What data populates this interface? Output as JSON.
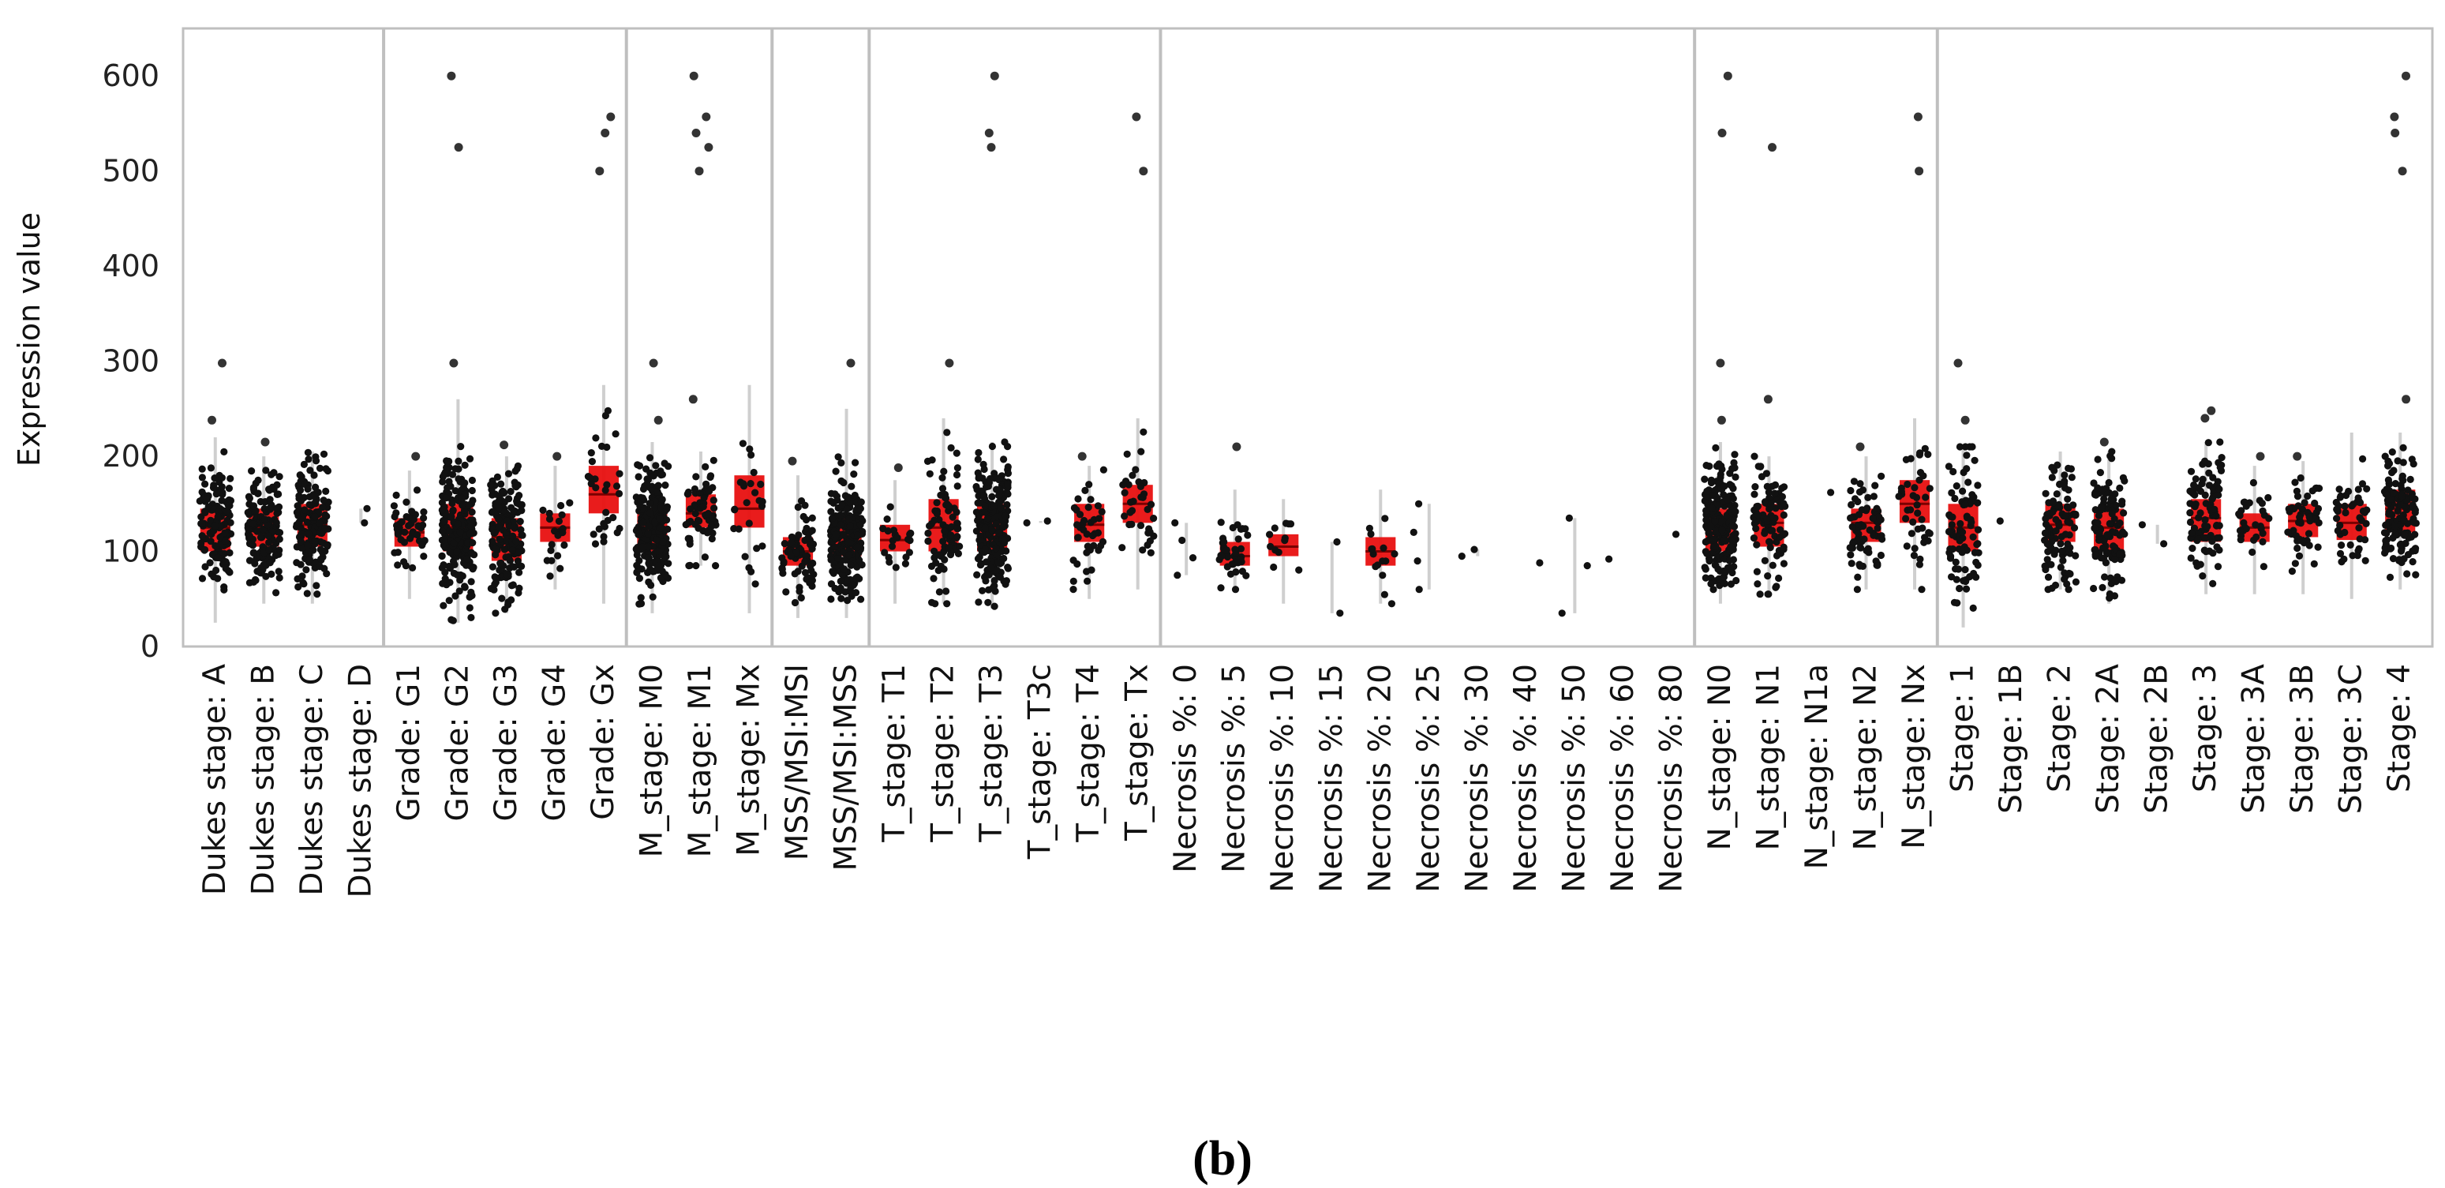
{
  "chart_data": {
    "type": "scatter",
    "subtype": "grouped jitter strip plot with box summaries",
    "ylabel": "Expression value",
    "ylim": [
      0,
      650
    ],
    "yticks": [
      0,
      100,
      200,
      300,
      400,
      500,
      600
    ],
    "grid": false,
    "point_color": "#111111",
    "box_color": "#e81010",
    "separator_color": "#bfbfbf",
    "panel_label": "(b)",
    "groups": [
      {
        "name": "Dukes stage",
        "categories": [
          {
            "label": "Dukes stage: A",
            "n": 130,
            "median": 125,
            "q1": 100,
            "q3": 145,
            "lo": 25,
            "hi": 220,
            "outliers": [
              238,
              298
            ]
          },
          {
            "label": "Dukes stage: B",
            "n": 150,
            "median": 125,
            "q1": 105,
            "q3": 145,
            "lo": 45,
            "hi": 200,
            "outliers": [
              215
            ]
          },
          {
            "label": "Dukes stage: C",
            "n": 150,
            "median": 128,
            "q1": 105,
            "q3": 150,
            "lo": 45,
            "hi": 205,
            "outliers": []
          },
          {
            "label": "Dukes stage: D",
            "n": 2,
            "median": 135,
            "q1": 130,
            "q3": 140,
            "lo": 130,
            "hi": 145,
            "outliers": []
          }
        ]
      },
      {
        "name": "Grade",
        "categories": [
          {
            "label": "Grade: G1",
            "n": 45,
            "median": 120,
            "q1": 105,
            "q3": 135,
            "lo": 50,
            "hi": 185,
            "outliers": [
              200
            ]
          },
          {
            "label": "Grade: G2",
            "n": 320,
            "median": 125,
            "q1": 100,
            "q3": 150,
            "lo": 25,
            "hi": 260,
            "outliers": [
              298,
              525,
              600
            ]
          },
          {
            "label": "Grade: G3",
            "n": 160,
            "median": 115,
            "q1": 90,
            "q3": 135,
            "lo": 35,
            "hi": 200,
            "outliers": [
              212
            ]
          },
          {
            "label": "Grade: G4",
            "n": 20,
            "median": 125,
            "q1": 110,
            "q3": 140,
            "lo": 60,
            "hi": 190,
            "outliers": [
              200
            ]
          },
          {
            "label": "Grade: Gx",
            "n": 30,
            "median": 160,
            "q1": 140,
            "q3": 190,
            "lo": 45,
            "hi": 275,
            "outliers": [
              500,
              540,
              557
            ]
          }
        ]
      },
      {
        "name": "M_stage",
        "categories": [
          {
            "label": "M_stage: M0",
            "n": 260,
            "median": 125,
            "q1": 100,
            "q3": 145,
            "lo": 35,
            "hi": 215,
            "outliers": [
              238,
              298
            ]
          },
          {
            "label": "M_stage: M1",
            "n": 60,
            "median": 140,
            "q1": 125,
            "q3": 160,
            "lo": 85,
            "hi": 205,
            "outliers": [
              260,
              500,
              525,
              540,
              557,
              600
            ]
          },
          {
            "label": "M_stage: Mx",
            "n": 25,
            "median": 145,
            "q1": 125,
            "q3": 180,
            "lo": 35,
            "hi": 275,
            "outliers": []
          }
        ]
      },
      {
        "name": "MSS/MSI",
        "categories": [
          {
            "label": "MSS/MSI:MSI",
            "n": 70,
            "median": 100,
            "q1": 85,
            "q3": 115,
            "lo": 30,
            "hi": 180,
            "outliers": [
              195
            ]
          },
          {
            "label": "MSS/MSI:MSS",
            "n": 260,
            "median": 115,
            "q1": 95,
            "q3": 135,
            "lo": 30,
            "hi": 250,
            "outliers": [
              298
            ]
          }
        ]
      },
      {
        "name": "T_stage",
        "categories": [
          {
            "label": "T_stage: T1",
            "n": 20,
            "median": 112,
            "q1": 100,
            "q3": 128,
            "lo": 45,
            "hi": 175,
            "outliers": [
              188
            ]
          },
          {
            "label": "T_stage: T2",
            "n": 80,
            "median": 125,
            "q1": 100,
            "q3": 155,
            "lo": 45,
            "hi": 240,
            "outliers": [
              298
            ]
          },
          {
            "label": "T_stage: T3",
            "n": 300,
            "median": 125,
            "q1": 100,
            "q3": 150,
            "lo": 40,
            "hi": 215,
            "outliers": [
              525,
              540,
              600
            ]
          },
          {
            "label": "T_stage: T3c",
            "n": 2,
            "median": 130,
            "q1": 130,
            "q3": 132,
            "lo": 130,
            "hi": 132,
            "outliers": []
          },
          {
            "label": "T_stage: T4",
            "n": 40,
            "median": 128,
            "q1": 110,
            "q3": 150,
            "lo": 50,
            "hi": 190,
            "outliers": [
              200
            ]
          },
          {
            "label": "T_stage: Tx",
            "n": 35,
            "median": 150,
            "q1": 130,
            "q3": 170,
            "lo": 60,
            "hi": 240,
            "outliers": [
              500,
              557
            ]
          }
        ]
      },
      {
        "name": "Necrosis %",
        "categories": [
          {
            "label": "Necrosis %: 0",
            "n": 4,
            "median": 95,
            "q1": 80,
            "q3": 110,
            "lo": 75,
            "hi": 130,
            "outliers": []
          },
          {
            "label": "Necrosis %: 5",
            "n": 40,
            "median": 95,
            "q1": 85,
            "q3": 110,
            "lo": 60,
            "hi": 165,
            "outliers": [
              210
            ]
          },
          {
            "label": "Necrosis %: 10",
            "n": 12,
            "median": 105,
            "q1": 95,
            "q3": 118,
            "lo": 45,
            "hi": 155,
            "outliers": []
          },
          {
            "label": "Necrosis %: 15",
            "n": 2,
            "median": 70,
            "q1": 35,
            "q3": 110,
            "lo": 35,
            "hi": 110,
            "outliers": []
          },
          {
            "label": "Necrosis %: 20",
            "n": 15,
            "median": 100,
            "q1": 85,
            "q3": 115,
            "lo": 45,
            "hi": 165,
            "outliers": []
          },
          {
            "label": "Necrosis %: 25",
            "n": 4,
            "median": 120,
            "q1": 105,
            "q3": 140,
            "lo": 60,
            "hi": 150,
            "outliers": []
          },
          {
            "label": "Necrosis %: 30",
            "n": 2,
            "median": 98,
            "q1": 95,
            "q3": 102,
            "lo": 95,
            "hi": 102,
            "outliers": []
          },
          {
            "label": "Necrosis %: 40",
            "n": 1,
            "median": 88,
            "q1": 88,
            "q3": 88,
            "lo": 88,
            "hi": 88,
            "outliers": []
          },
          {
            "label": "Necrosis %: 50",
            "n": 3,
            "median": 65,
            "q1": 40,
            "q3": 135,
            "lo": 35,
            "hi": 135,
            "outliers": []
          },
          {
            "label": "Necrosis %: 60",
            "n": 1,
            "median": 92,
            "q1": 92,
            "q3": 92,
            "lo": 92,
            "hi": 92,
            "outliers": []
          },
          {
            "label": "Necrosis %: 80",
            "n": 1,
            "median": 118,
            "q1": 118,
            "q3": 118,
            "lo": 118,
            "hi": 118,
            "outliers": []
          }
        ]
      },
      {
        "name": "N_stage",
        "categories": [
          {
            "label": "N_stage: N0",
            "n": 240,
            "median": 125,
            "q1": 100,
            "q3": 145,
            "lo": 45,
            "hi": 215,
            "outliers": [
              238,
              298,
              540,
              600
            ]
          },
          {
            "label": "N_stage: N1",
            "n": 90,
            "median": 130,
            "q1": 105,
            "q3": 150,
            "lo": 55,
            "hi": 200,
            "outliers": [
              260,
              525
            ]
          },
          {
            "label": "N_stage: N1a",
            "n": 1,
            "median": 162,
            "q1": 162,
            "q3": 162,
            "lo": 162,
            "hi": 162,
            "outliers": []
          },
          {
            "label": "N_stage: N2",
            "n": 70,
            "median": 130,
            "q1": 110,
            "q3": 145,
            "lo": 60,
            "hi": 200,
            "outliers": [
              210
            ]
          },
          {
            "label": "N_stage: Nx",
            "n": 40,
            "median": 150,
            "q1": 130,
            "q3": 175,
            "lo": 60,
            "hi": 240,
            "outliers": [
              500,
              557
            ]
          }
        ]
      },
      {
        "name": "Stage",
        "categories": [
          {
            "label": "Stage: 1",
            "n": 80,
            "median": 125,
            "q1": 100,
            "q3": 150,
            "lo": 20,
            "hi": 210,
            "outliers": [
              238,
              298
            ]
          },
          {
            "label": "Stage: 1B",
            "n": 1,
            "median": 132,
            "q1": 132,
            "q3": 132,
            "lo": 132,
            "hi": 132,
            "outliers": []
          },
          {
            "label": "Stage: 2",
            "n": 100,
            "median": 128,
            "q1": 110,
            "q3": 150,
            "lo": 60,
            "hi": 205,
            "outliers": []
          },
          {
            "label": "Stage: 2A",
            "n": 110,
            "median": 125,
            "q1": 100,
            "q3": 145,
            "lo": 45,
            "hi": 205,
            "outliers": [
              215
            ]
          },
          {
            "label": "Stage: 2B",
            "n": 2,
            "median": 118,
            "q1": 108,
            "q3": 128,
            "lo": 108,
            "hi": 128,
            "outliers": []
          },
          {
            "label": "Stage: 3",
            "n": 90,
            "median": 135,
            "q1": 110,
            "q3": 155,
            "lo": 55,
            "hi": 215,
            "outliers": [
              240,
              248
            ]
          },
          {
            "label": "Stage: 3A",
            "n": 30,
            "median": 125,
            "q1": 110,
            "q3": 140,
            "lo": 55,
            "hi": 190,
            "outliers": [
              200
            ]
          },
          {
            "label": "Stage: 3B",
            "n": 50,
            "median": 132,
            "q1": 115,
            "q3": 150,
            "lo": 55,
            "hi": 195,
            "outliers": [
              200
            ]
          },
          {
            "label": "Stage: 3C",
            "n": 45,
            "median": 130,
            "q1": 112,
            "q3": 150,
            "lo": 50,
            "hi": 225,
            "outliers": []
          },
          {
            "label": "Stage: 4",
            "n": 130,
            "median": 145,
            "q1": 120,
            "q3": 165,
            "lo": 60,
            "hi": 225,
            "outliers": [
              260,
              500,
              540,
              557,
              600
            ]
          }
        ]
      }
    ]
  }
}
